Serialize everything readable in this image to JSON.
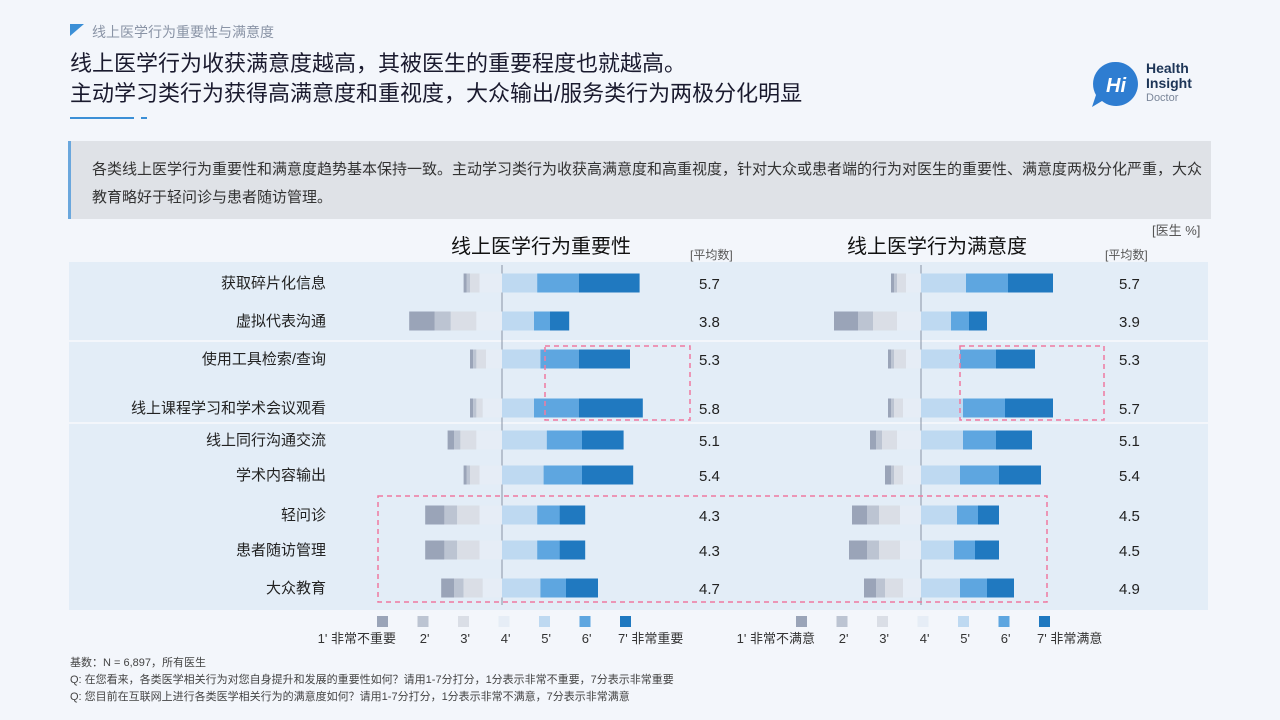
{
  "section_label": "线上医学行为重要性与满意度",
  "headline": {
    "line1": "线上医学行为收获满意度越高，其被医生的重要程度也就越高。",
    "line2": "主动学习类行为获得高满意度和重视度，大众输出/服务类行为两极分化明显"
  },
  "logo": {
    "mark": "Hi",
    "line1": "Health",
    "line2": "Insight",
    "line3": "Doctor"
  },
  "summary": "各类线上医学行为重要性和满意度趋势基本保持一致。主动学习类行为收获高满意度和高重视度，针对大众或患者端的行为对医生的重要性、满意度两极分化严重，大众教育略好于轻问诊与患者随访管理。",
  "unit_label": "[医生 %]",
  "avg_header": "[平均数]",
  "colors": {
    "scale": [
      "#9aa4b8",
      "#bcc4d2",
      "#dadee6",
      "#e6edf6",
      "#bed9f1",
      "#5ea6e0",
      "#2079c0"
    ],
    "row_band": "#e3edf7",
    "highlight": "#f07aa0",
    "accent": "#3b8fd6"
  },
  "chart_data": [
    {
      "type": "bar",
      "subtype": "diverging-stacked-horizontal",
      "title": "线上医学行为重要性",
      "categories": [
        "获取碎片化信息",
        "虚拟代表沟通",
        "使用工具检索/查询",
        "线上课程学习和学术会议观看",
        "线上同行沟通交流",
        "学术内容输出",
        "轻问诊",
        "患者随访管理",
        "大众教育"
      ],
      "series": [
        {
          "name": "1' 非常不重要",
          "values": [
            1,
            8,
            1,
            1,
            2,
            1,
            6,
            6,
            4
          ]
        },
        {
          "name": "2'",
          "values": [
            1,
            5,
            1,
            1,
            2,
            1,
            4,
            4,
            3
          ]
        },
        {
          "name": "3'",
          "values": [
            3,
            8,
            3,
            2,
            5,
            3,
            7,
            7,
            6
          ]
        },
        {
          "name": "4'",
          "values": [
            7,
            8,
            5,
            6,
            8,
            7,
            7,
            7,
            6
          ]
        },
        {
          "name": "5'",
          "values": [
            11,
            10,
            12,
            10,
            14,
            13,
            11,
            11,
            12
          ]
        },
        {
          "name": "6'",
          "values": [
            13,
            5,
            12,
            14,
            11,
            12,
            7,
            7,
            8
          ]
        },
        {
          "name": "7' 非常重要",
          "values": [
            19,
            6,
            16,
            20,
            13,
            16,
            8,
            8,
            10
          ]
        }
      ],
      "averages": [
        "5.7",
        "3.8",
        "5.3",
        "5.8",
        "5.1",
        "5.4",
        "4.3",
        "4.3",
        "4.7"
      ]
    },
    {
      "type": "bar",
      "subtype": "diverging-stacked-horizontal",
      "title": "线上医学行为满意度",
      "categories": [
        "获取碎片化信息",
        "虚拟代表沟通",
        "使用工具检索/查询",
        "线上课程学习和学术会议观看",
        "线上同行沟通交流",
        "学术内容输出",
        "轻问诊",
        "患者随访管理",
        "大众教育"
      ],
      "series": [
        {
          "name": "1' 非常不满意",
          "values": [
            1,
            8,
            1,
            1,
            2,
            2,
            5,
            6,
            4
          ]
        },
        {
          "name": "2'",
          "values": [
            1,
            5,
            1,
            1,
            2,
            1,
            4,
            4,
            3
          ]
        },
        {
          "name": "3'",
          "values": [
            3,
            8,
            4,
            3,
            5,
            3,
            7,
            7,
            6
          ]
        },
        {
          "name": "4'",
          "values": [
            5,
            8,
            5,
            6,
            8,
            6,
            7,
            7,
            6
          ]
        },
        {
          "name": "5'",
          "values": [
            15,
            10,
            13,
            14,
            14,
            13,
            12,
            11,
            13
          ]
        },
        {
          "name": "6'",
          "values": [
            14,
            6,
            12,
            14,
            11,
            13,
            7,
            7,
            9
          ]
        },
        {
          "name": "7' 非常满意",
          "values": [
            15,
            6,
            13,
            16,
            12,
            14,
            7,
            8,
            9
          ]
        }
      ],
      "averages": [
        "5.7",
        "3.9",
        "5.3",
        "5.7",
        "5.1",
        "5.4",
        "4.5",
        "4.5",
        "4.9"
      ]
    }
  ],
  "footnotes": [
    "基数：N = 6,897，所有医生",
    "Q: 在您看来，各类医学相关行为对您自身提升和发展的重要性如何？请用1-7分打分，1分表示非常不重要，7分表示非常重要",
    "Q: 您目前在互联网上进行各类医学相关行为的满意度如何？请用1-7分打分，1分表示非常不满意，7分表示非常满意"
  ]
}
